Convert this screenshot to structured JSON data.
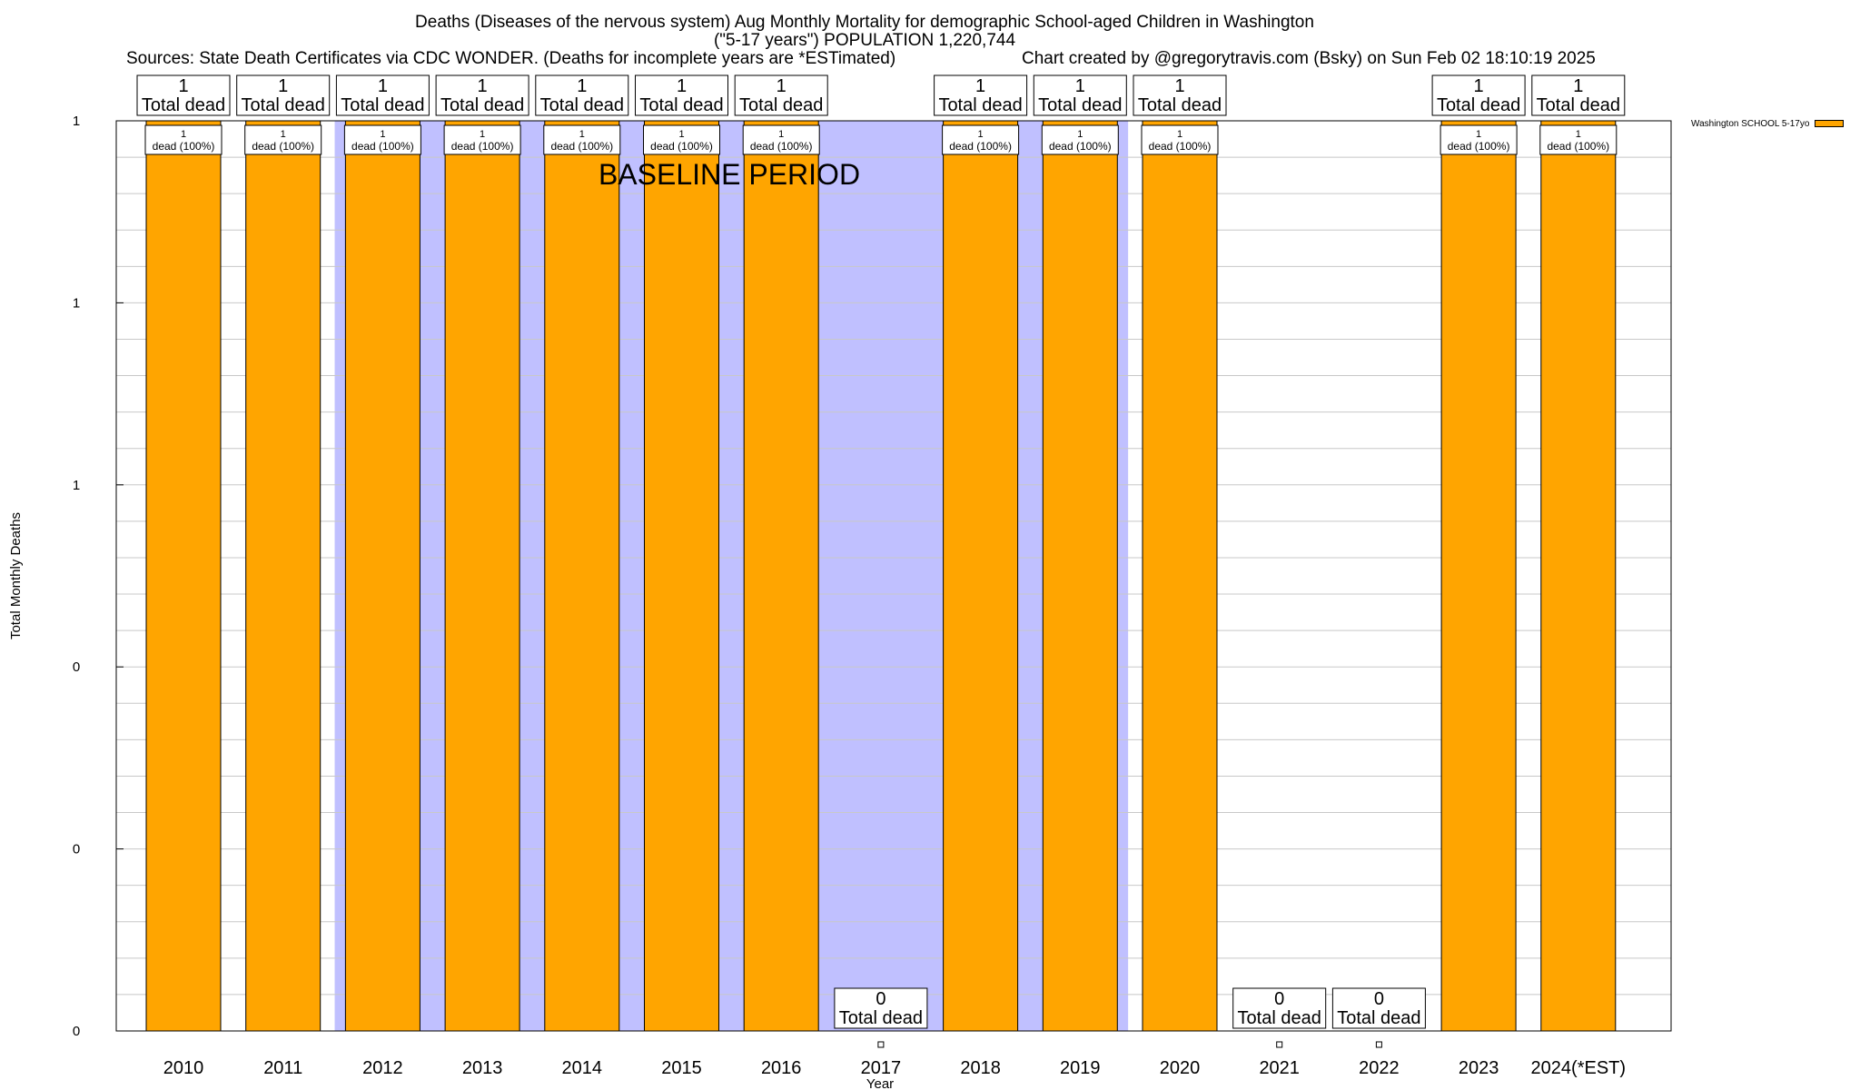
{
  "titles": {
    "line1": "Deaths (Diseases of the nervous system) Aug Monthly Mortality for demographic School-aged Children in Washington",
    "line2": "(\"5-17 years\") POPULATION 1,220,744",
    "sources": "Sources: State Death Certificates via CDC WONDER. (Deaths for incomplete years are *ESTimated)",
    "credit": "Chart created by @gregorytravis.com (Bsky) on Sun Feb 02 18:10:19 2025"
  },
  "legend": {
    "label": "Washington SCHOOL 5-17yo",
    "color": "#ffa500"
  },
  "chart_data": {
    "type": "bar",
    "categories": [
      "2010",
      "2011",
      "2012",
      "2013",
      "2014",
      "2015",
      "2016",
      "2017",
      "2018",
      "2019",
      "2020",
      "2021",
      "2022",
      "2023",
      "2024(*EST)"
    ],
    "series": [
      {
        "name": "Washington SCHOOL 5-17yo",
        "values": [
          1,
          1,
          1,
          1,
          1,
          1,
          1,
          0,
          1,
          1,
          1,
          0,
          0,
          1,
          1
        ]
      }
    ],
    "top_labels": {
      "count": [
        "1",
        "1",
        "1",
        "1",
        "1",
        "1",
        "1",
        "0",
        "1",
        "1",
        "1",
        "0",
        "0",
        "1",
        "1"
      ],
      "text": "Total dead"
    },
    "inner_labels": {
      "count": "1",
      "text": "dead (100%)"
    },
    "baseline_label": "BASELINE PERIOD",
    "baseline_range": [
      "2012",
      "2019"
    ],
    "xlabel": "Year",
    "ylabel": "Total Monthly Deaths",
    "yticks": [
      "0",
      "0",
      "0",
      "1",
      "1",
      "1"
    ],
    "ylim": [
      0,
      1
    ],
    "grid": true,
    "colors": {
      "bar": "#ffa500",
      "baseline": "#c0c0ff",
      "grid": "#c8c8c8"
    }
  }
}
